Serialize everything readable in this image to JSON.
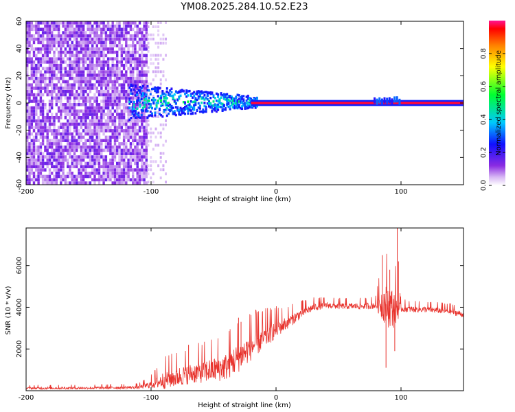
{
  "title": "YM08.2025.284.10.52.E23",
  "chart_data": [
    {
      "type": "heatmap",
      "name": "spectrogram",
      "xlabel": "Height of straight line (km)",
      "ylabel": "Frequency (Hz)",
      "xlim": [
        -200,
        150
      ],
      "ylim": [
        -60,
        60
      ],
      "xticks": [
        "-200",
        "-100",
        "0",
        "100"
      ],
      "xtick_values": [
        -200,
        -100,
        0,
        100
      ],
      "yticks": [
        "60",
        "40",
        "20",
        "0",
        "-20",
        "-40",
        "-60"
      ],
      "ytick_values": [
        60,
        40,
        20,
        0,
        -20,
        -40,
        -60
      ],
      "noise_region_km": [
        -200,
        -103
      ],
      "scatter_region_km": [
        -118,
        -15
      ],
      "line_start_km": -20,
      "line_frequency_hz": 0,
      "burst_region_km": [
        78,
        100
      ],
      "colorbar": {
        "label": "Normalized spectral amplitude",
        "range": [
          0.0,
          1.0
        ],
        "ticks": [
          "0.0",
          "0.2",
          "0.4",
          "0.6",
          "0.8"
        ],
        "tick_values": [
          0.0,
          0.2,
          0.4,
          0.6,
          0.8
        ]
      }
    },
    {
      "type": "line",
      "name": "snr",
      "xlabel": "Height of straight line (km)",
      "ylabel": "SNR (10 * v/v)",
      "xlim": [
        -200,
        150
      ],
      "ylim": [
        0,
        7800
      ],
      "xticks": [
        "-200",
        "-100",
        "0",
        "100"
      ],
      "xtick_values": [
        -200,
        -100,
        0,
        100
      ],
      "yticks": [
        "6000",
        "4000",
        "2000"
      ],
      "ytick_values": [
        6000,
        4000,
        2000
      ],
      "color": "#e8332d",
      "series": [
        {
          "name": "SNR",
          "x": [
            -200,
            -150,
            -110,
            -100,
            -90,
            -80,
            -70,
            -60,
            -50,
            -40,
            -30,
            -20,
            -10,
            0,
            10,
            20,
            30,
            40,
            50,
            60,
            70,
            80,
            85,
            90,
            95,
            100,
            110,
            120,
            130,
            140,
            150
          ],
          "y": [
            120,
            130,
            160,
            300,
            500,
            650,
            800,
            900,
            1000,
            1150,
            1600,
            2100,
            2500,
            2950,
            3300,
            3700,
            4000,
            4100,
            4050,
            4050,
            4050,
            4100,
            4200,
            4100,
            3900,
            3950,
            3900,
            3900,
            3850,
            3800,
            3650
          ],
          "spread": [
            100,
            100,
            120,
            300,
            700,
            800,
            800,
            900,
            1000,
            1100,
            1200,
            1100,
            900,
            700,
            500,
            400,
            300,
            250,
            250,
            250,
            250,
            300,
            1400,
            1800,
            1500,
            300,
            250,
            250,
            250,
            250,
            250
          ]
        }
      ],
      "spikes": [
        {
          "x": -70,
          "y": 2200
        },
        {
          "x": -30,
          "y": 3500
        },
        {
          "x": -28,
          "y": 3300
        },
        {
          "x": 85,
          "y": 6500
        },
        {
          "x": 88,
          "y": 1100
        },
        {
          "x": 91,
          "y": 5800
        },
        {
          "x": 95,
          "y": 1900
        },
        {
          "x": 97,
          "y": 7800
        },
        {
          "x": 98,
          "y": 6200
        }
      ]
    }
  ]
}
